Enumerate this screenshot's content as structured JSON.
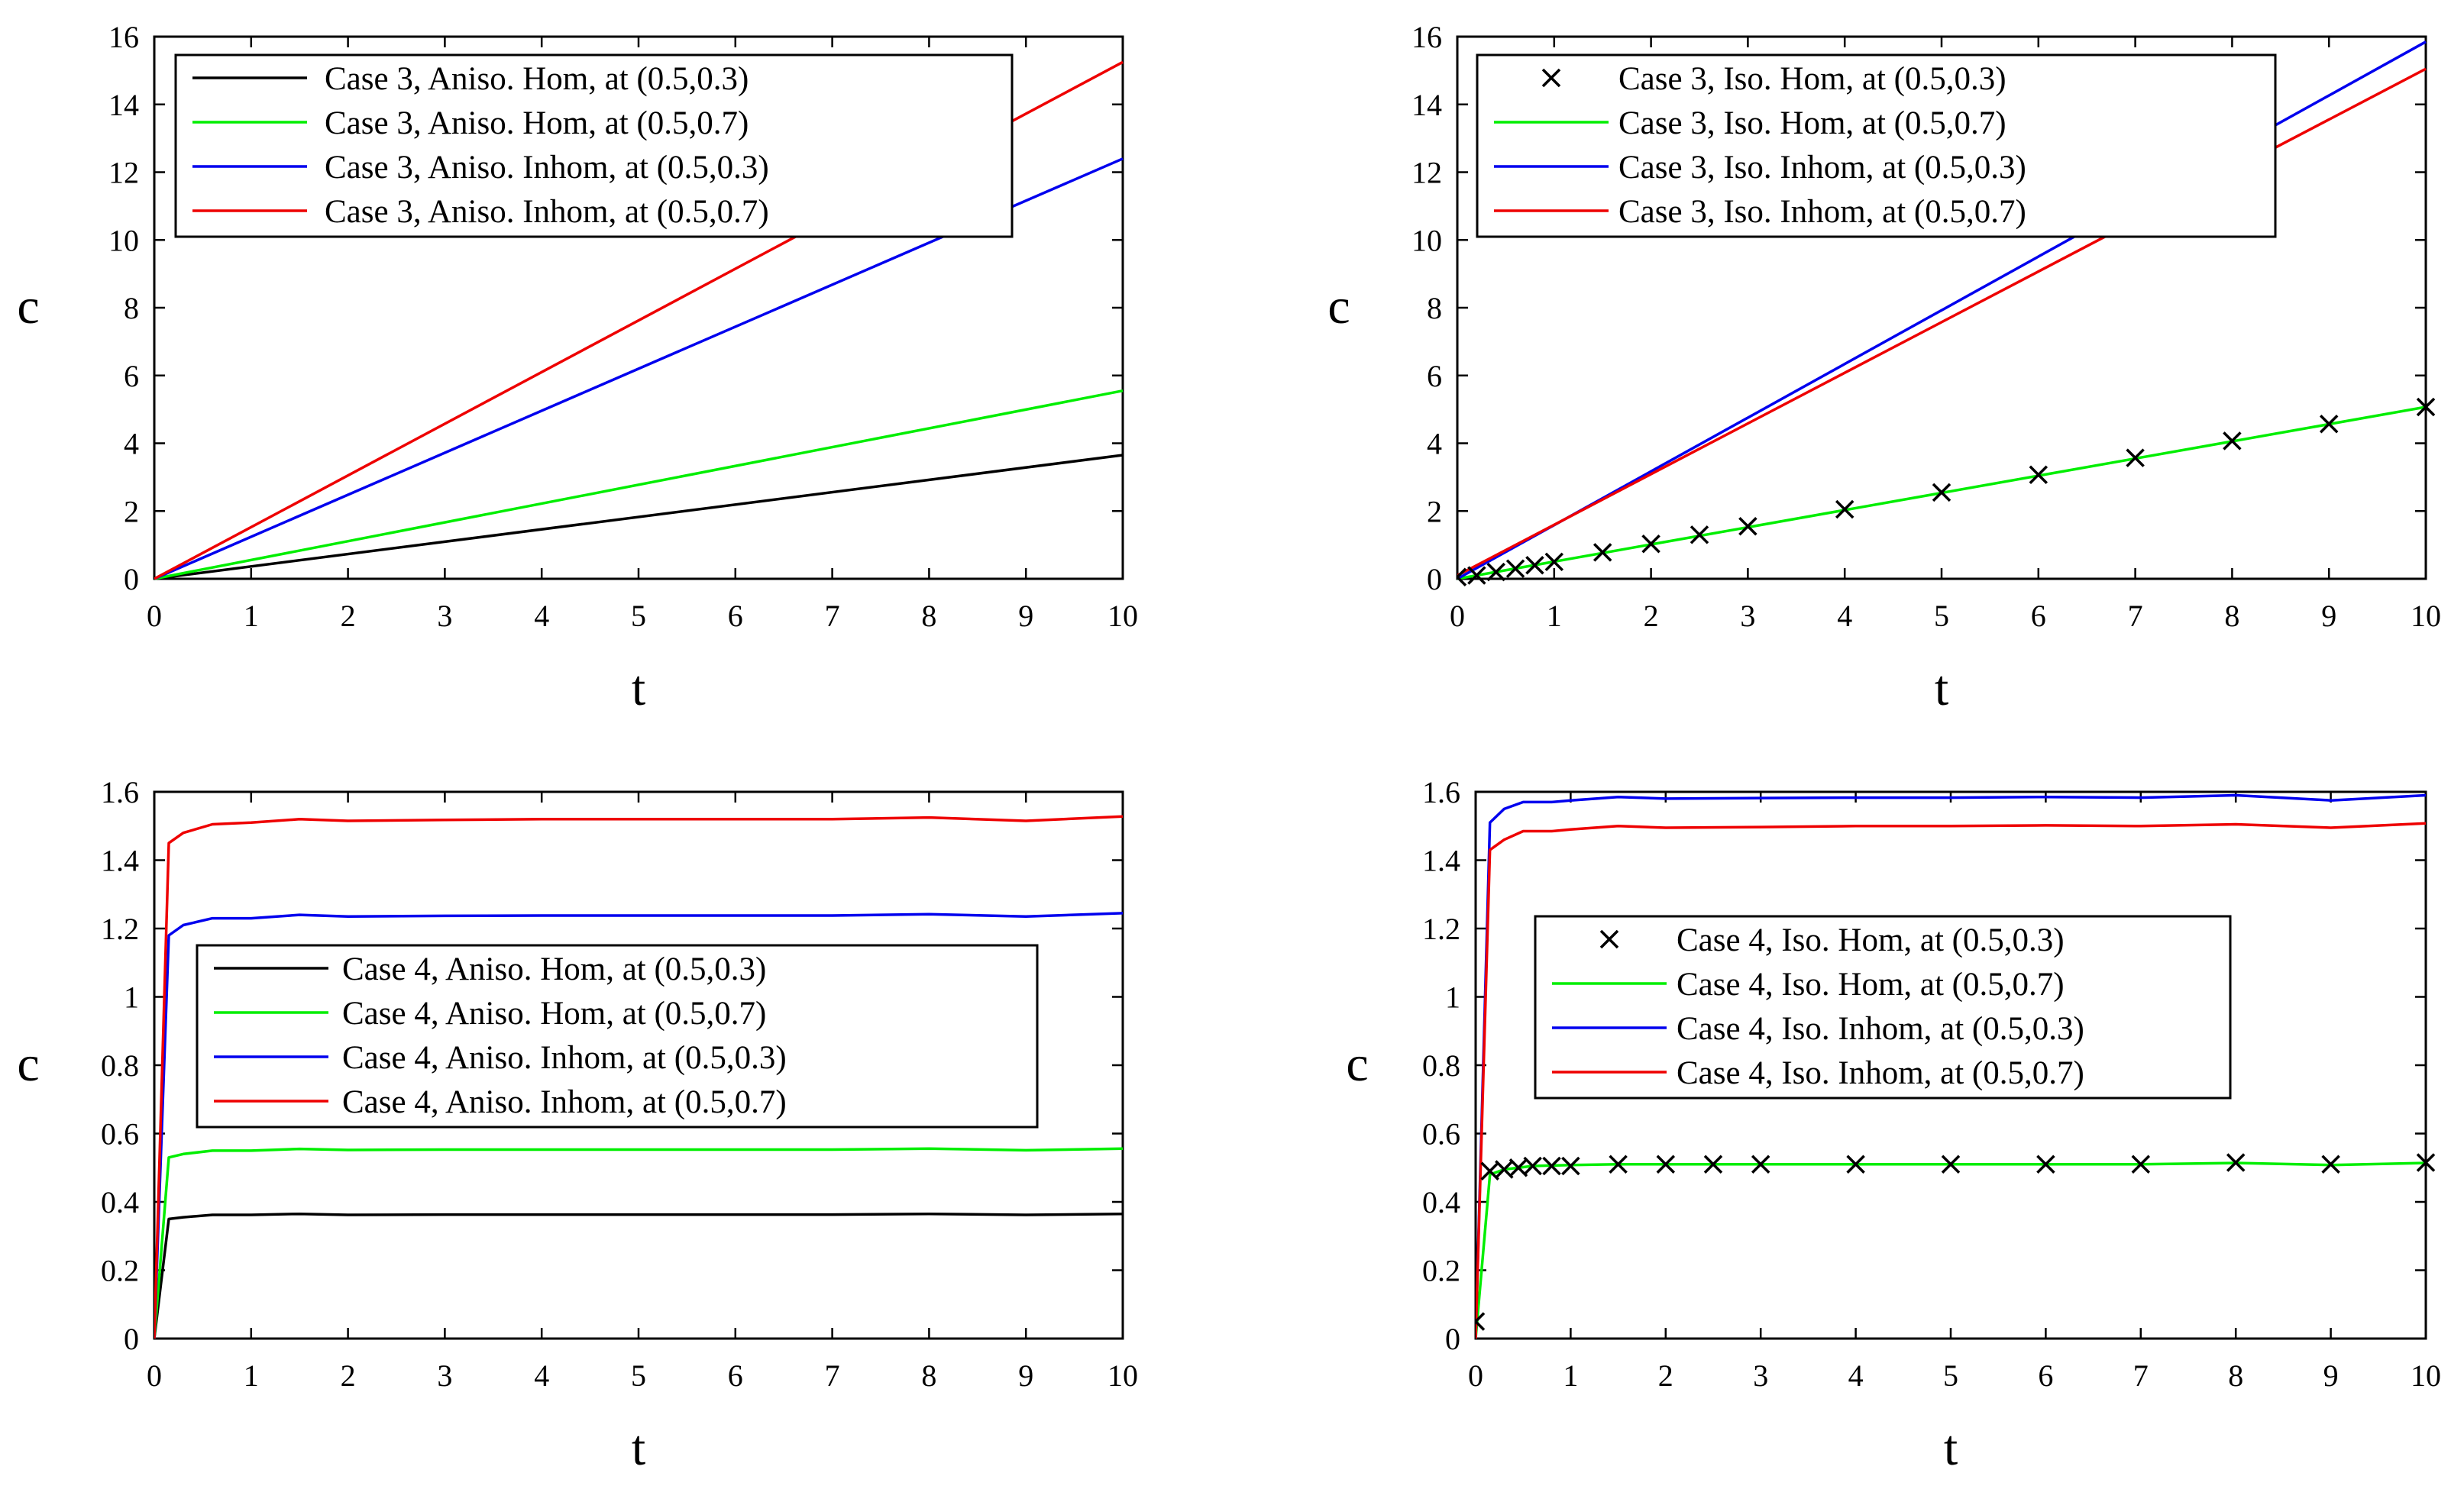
{
  "chart_data": [
    {
      "type": "line",
      "id": "p1",
      "title": "",
      "xlabel": "t",
      "ylabel": "c",
      "xlim": [
        0,
        10
      ],
      "ylim": [
        0,
        16
      ],
      "xticks": [
        0,
        1,
        2,
        3,
        4,
        5,
        6,
        7,
        8,
        9,
        10
      ],
      "yticks": [
        0,
        2,
        4,
        6,
        8,
        10,
        12,
        14,
        16
      ],
      "xtick_labels": [
        "0",
        "1",
        "2",
        "3",
        "4",
        "5",
        "6",
        "7",
        "8",
        "9",
        "10"
      ],
      "ytick_labels": [
        "0",
        "2",
        "4",
        "6",
        "8",
        "10",
        "12",
        "14",
        "16"
      ],
      "legend_position": "top-left",
      "series": [
        {
          "name": "Case 3, Aniso. Hom, at (0.5,0.3)",
          "color": "#000000",
          "style": "line",
          "x": [
            0,
            10
          ],
          "y": [
            0,
            3.65
          ]
        },
        {
          "name": "Case 3, Aniso. Hom, at (0.5,0.7)",
          "color": "#00ee00",
          "style": "line",
          "x": [
            0,
            10
          ],
          "y": [
            0,
            5.55
          ]
        },
        {
          "name": "Case 3, Aniso. Inhom, at (0.5,0.3)",
          "color": "#0000ee",
          "style": "line",
          "x": [
            0,
            10
          ],
          "y": [
            0,
            12.4
          ]
        },
        {
          "name": "Case 3, Aniso. Inhom, at (0.5,0.7)",
          "color": "#ee0000",
          "style": "line",
          "x": [
            0,
            10
          ],
          "y": [
            0,
            15.25
          ]
        }
      ]
    },
    {
      "type": "line",
      "id": "p2",
      "title": "",
      "xlabel": "t",
      "ylabel": "c",
      "xlim": [
        0,
        10
      ],
      "ylim": [
        0,
        16
      ],
      "xticks": [
        0,
        1,
        2,
        3,
        4,
        5,
        6,
        7,
        8,
        9,
        10
      ],
      "yticks": [
        0,
        2,
        4,
        6,
        8,
        10,
        12,
        14,
        16
      ],
      "xtick_labels": [
        "0",
        "1",
        "2",
        "3",
        "4",
        "5",
        "6",
        "7",
        "8",
        "9",
        "10"
      ],
      "ytick_labels": [
        "0",
        "2",
        "4",
        "6",
        "8",
        "10",
        "12",
        "14",
        "16"
      ],
      "legend_position": "top-left",
      "series": [
        {
          "name": "Case 3, Iso. Hom, at (0.5,0.3)",
          "color": "#000000",
          "style": "markers",
          "x": [
            0,
            0.2,
            0.4,
            0.6,
            0.8,
            1,
            1.5,
            2,
            2.5,
            3,
            4,
            5,
            6,
            7,
            8,
            9,
            10
          ],
          "y": [
            0.05,
            0.1,
            0.2,
            0.3,
            0.4,
            0.5,
            0.78,
            1.03,
            1.3,
            1.55,
            2.05,
            2.55,
            3.07,
            3.57,
            4.07,
            4.57,
            5.07
          ]
        },
        {
          "name": "Case 3, Iso. Hom, at (0.5,0.7)",
          "color": "#00ee00",
          "style": "line",
          "x": [
            0,
            10
          ],
          "y": [
            0,
            5.07
          ]
        },
        {
          "name": "Case 3, Iso. Inhom, at (0.5,0.3)",
          "color": "#0000ee",
          "style": "line",
          "x": [
            0,
            10
          ],
          "y": [
            0,
            15.85
          ]
        },
        {
          "name": "Case 3, Iso. Inhom, at (0.5,0.7)",
          "color": "#ee0000",
          "style": "line",
          "x": [
            0,
            10
          ],
          "y": [
            0.1,
            15.05
          ]
        }
      ]
    },
    {
      "type": "line",
      "id": "p3",
      "title": "",
      "xlabel": "t",
      "ylabel": "c",
      "xlim": [
        0,
        10
      ],
      "ylim": [
        0,
        1.6
      ],
      "xticks": [
        0,
        1,
        2,
        3,
        4,
        5,
        6,
        7,
        8,
        9,
        10
      ],
      "yticks": [
        0,
        0.2,
        0.4,
        0.6,
        0.8,
        1,
        1.2,
        1.4,
        1.6
      ],
      "xtick_labels": [
        "0",
        "1",
        "2",
        "3",
        "4",
        "5",
        "6",
        "7",
        "8",
        "9",
        "10"
      ],
      "ytick_labels": [
        "0",
        "0.2",
        "0.4",
        "0.6",
        "0.8",
        "1",
        "1.2",
        "1.4",
        "1.6"
      ],
      "legend_position": "center-right",
      "series": [
        {
          "name": "Case 4, Aniso. Hom, at (0.5,0.3)",
          "color": "#000000",
          "style": "line",
          "x": [
            0,
            0.15,
            0.3,
            0.6,
            1,
            1.5,
            2,
            3,
            4,
            5,
            6,
            7,
            8,
            9,
            10
          ],
          "y": [
            0,
            0.35,
            0.355,
            0.362,
            0.362,
            0.365,
            0.362,
            0.363,
            0.363,
            0.363,
            0.363,
            0.363,
            0.365,
            0.362,
            0.365
          ]
        },
        {
          "name": "Case 4, Aniso. Hom, at (0.5,0.7)",
          "color": "#00ee00",
          "style": "line",
          "x": [
            0,
            0.15,
            0.3,
            0.6,
            1,
            1.5,
            2,
            3,
            4,
            5,
            6,
            7,
            8,
            9,
            10
          ],
          "y": [
            0,
            0.53,
            0.54,
            0.55,
            0.55,
            0.555,
            0.552,
            0.553,
            0.553,
            0.553,
            0.553,
            0.553,
            0.556,
            0.551,
            0.556
          ]
        },
        {
          "name": "Case 4, Aniso. Inhom, at (0.5,0.3)",
          "color": "#0000ee",
          "style": "line",
          "x": [
            0,
            0.15,
            0.3,
            0.6,
            1,
            1.5,
            2,
            3,
            4,
            5,
            6,
            7,
            8,
            9,
            10
          ],
          "y": [
            0,
            1.18,
            1.21,
            1.23,
            1.23,
            1.24,
            1.235,
            1.237,
            1.238,
            1.238,
            1.238,
            1.238,
            1.242,
            1.235,
            1.245
          ]
        },
        {
          "name": "Case 4, Aniso. Inhom, at (0.5,0.7)",
          "color": "#ee0000",
          "style": "line",
          "x": [
            0,
            0.15,
            0.3,
            0.6,
            1,
            1.5,
            2,
            3,
            4,
            5,
            6,
            7,
            8,
            9,
            10
          ],
          "y": [
            0,
            1.45,
            1.48,
            1.505,
            1.51,
            1.52,
            1.515,
            1.518,
            1.52,
            1.52,
            1.52,
            1.52,
            1.525,
            1.515,
            1.528
          ]
        }
      ]
    },
    {
      "type": "line",
      "id": "p4",
      "title": "",
      "xlabel": "t",
      "ylabel": "c",
      "xlim": [
        0,
        10
      ],
      "ylim": [
        0,
        1.6
      ],
      "xticks": [
        0,
        1,
        2,
        3,
        4,
        5,
        6,
        7,
        8,
        9,
        10
      ],
      "yticks": [
        0,
        0.2,
        0.4,
        0.6,
        0.8,
        1,
        1.2,
        1.4,
        1.6
      ],
      "xtick_labels": [
        "0",
        "1",
        "2",
        "3",
        "4",
        "5",
        "6",
        "7",
        "8",
        "9",
        "10"
      ],
      "ytick_labels": [
        "0",
        "0.2",
        "0.4",
        "0.6",
        "0.8",
        "1",
        "1.2",
        "1.4",
        "1.6"
      ],
      "legend_position": "center",
      "series": [
        {
          "name": "Case 4, Iso. Hom, at (0.5,0.3)",
          "color": "#000000",
          "style": "markers",
          "x": [
            0,
            0.15,
            0.3,
            0.45,
            0.6,
            0.8,
            1,
            1.5,
            2,
            2.5,
            3,
            4,
            5,
            6,
            7,
            8,
            9,
            10
          ],
          "y": [
            0.05,
            0.49,
            0.495,
            0.5,
            0.505,
            0.505,
            0.505,
            0.51,
            0.51,
            0.51,
            0.51,
            0.51,
            0.51,
            0.51,
            0.51,
            0.515,
            0.51,
            0.515
          ]
        },
        {
          "name": "Case 4, Iso. Hom, at (0.5,0.7)",
          "color": "#00ee00",
          "style": "line",
          "x": [
            0,
            0.15,
            0.3,
            0.6,
            1,
            1.5,
            2,
            3,
            4,
            5,
            6,
            7,
            8,
            9,
            10
          ],
          "y": [
            0,
            0.48,
            0.495,
            0.505,
            0.508,
            0.51,
            0.51,
            0.51,
            0.51,
            0.51,
            0.51,
            0.51,
            0.514,
            0.508,
            0.514
          ]
        },
        {
          "name": "Case 4, Iso. Inhom, at (0.5,0.3)",
          "color": "#0000ee",
          "style": "line",
          "x": [
            0,
            0.15,
            0.3,
            0.5,
            0.8,
            1,
            1.5,
            2,
            3,
            4,
            5,
            6,
            7,
            8,
            9,
            10
          ],
          "y": [
            0,
            1.51,
            1.55,
            1.57,
            1.57,
            1.575,
            1.585,
            1.58,
            1.582,
            1.583,
            1.583,
            1.585,
            1.583,
            1.59,
            1.575,
            1.59
          ]
        },
        {
          "name": "Case 4, Iso. Inhom, at (0.5,0.7)",
          "color": "#ee0000",
          "style": "line",
          "x": [
            0,
            0.15,
            0.3,
            0.5,
            0.8,
            1,
            1.5,
            2,
            3,
            4,
            5,
            6,
            7,
            8,
            9,
            10
          ],
          "y": [
            0,
            1.43,
            1.46,
            1.485,
            1.485,
            1.49,
            1.5,
            1.495,
            1.497,
            1.5,
            1.5,
            1.502,
            1.5,
            1.505,
            1.495,
            1.508
          ]
        }
      ]
    }
  ]
}
